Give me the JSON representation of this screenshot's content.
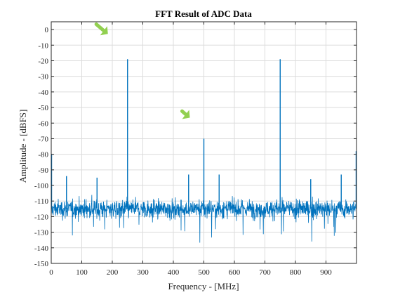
{
  "chart_data": {
    "type": "line",
    "title": "FFT Result of ADC Data",
    "xlabel": "Frequency - [MHz]",
    "ylabel": "Amplitude - [dBFS]",
    "xlim": [
      0,
      1000
    ],
    "ylim": [
      -150,
      5
    ],
    "xticks": [
      0,
      100,
      200,
      300,
      400,
      500,
      600,
      700,
      800,
      900
    ],
    "yticks": [
      0,
      -10,
      -20,
      -30,
      -40,
      -50,
      -60,
      -70,
      -80,
      -90,
      -100,
      -110,
      -120,
      -130,
      -140,
      -150
    ],
    "grid": true,
    "series": [
      {
        "color": "#0072BD",
        "noise_floor": {
          "center": -115,
          "min": -150,
          "max": -103
        },
        "spurs": [
          {
            "x": 0,
            "y": -80
          },
          {
            "x": 50,
            "y": -94
          },
          {
            "x": 150,
            "y": -95
          },
          {
            "x": 250,
            "y": -19
          },
          {
            "x": 450,
            "y": -93
          },
          {
            "x": 500,
            "y": -70
          },
          {
            "x": 550,
            "y": -93
          },
          {
            "x": 750,
            "y": -19
          },
          {
            "x": 850,
            "y": -96
          },
          {
            "x": 950,
            "y": -93
          },
          {
            "x": 1000,
            "y": -78
          }
        ]
      }
    ],
    "annotations": [
      {
        "type": "arrow",
        "color": "#92D050",
        "points_to": {
          "x": 250,
          "y": -19
        }
      },
      {
        "type": "arrow",
        "color": "#92D050",
        "points_to": {
          "x": 500,
          "y": -70
        }
      }
    ]
  }
}
